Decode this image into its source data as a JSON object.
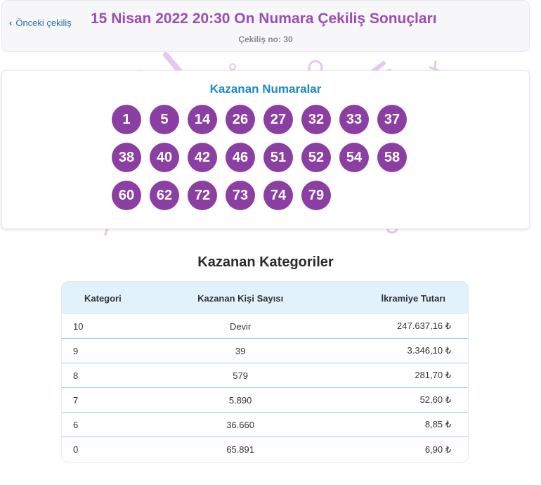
{
  "header": {
    "back_label": "Önceki çekiliş",
    "back_chevron": "‹",
    "title": "15 Nisan 2022 20:30 On Numara Çekiliş Sonuçları",
    "draw_no": "Çekiliş no: 30"
  },
  "winning": {
    "title": "Kazanan Numaralar",
    "numbers": [
      "1",
      "5",
      "14",
      "26",
      "27",
      "32",
      "33",
      "37",
      "38",
      "40",
      "42",
      "46",
      "51",
      "52",
      "54",
      "58",
      "60",
      "62",
      "72",
      "73",
      "74",
      "79"
    ]
  },
  "categories": {
    "title": "Kazanan Kategoriler",
    "columns": [
      "Kategori",
      "Kazanan Kişi Sayısı",
      "İkramiye Tutarı"
    ],
    "rows": [
      [
        "10",
        "Devir",
        "247.637,16 ₺"
      ],
      [
        "9",
        "39",
        "3.346,10 ₺"
      ],
      [
        "8",
        "579",
        "281,70 ₺"
      ],
      [
        "7",
        "5.890",
        "52,60 ₺"
      ],
      [
        "6",
        "36.660",
        "8,85 ₺"
      ],
      [
        "0",
        "65.891",
        "6,90 ₺"
      ]
    ]
  },
  "colors": {
    "ball": "#8c3fa3",
    "title_purple": "#9a4fb0",
    "accent_blue": "#1d8bc7",
    "table_header_bg": "#e1f2fc",
    "decoration": "#e4c8f0"
  }
}
